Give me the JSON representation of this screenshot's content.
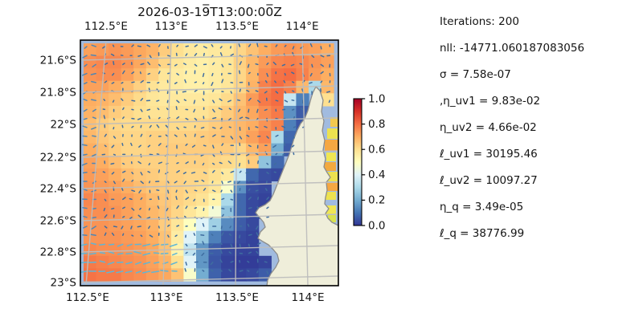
{
  "chart_data": {
    "type": "heatmap",
    "title": "2026-03-19̅T13:00:00̅Z",
    "x_tick_labels": [
      "112.5°E",
      "113°E",
      "113.5°E",
      "114°E"
    ],
    "x_axis_sides": "top and bottom",
    "y_tick_labels": [
      "21.6°S",
      "21.8°S",
      "22°S",
      "22.2°S",
      "22.4°S",
      "22.6°S",
      "22.8°S",
      "23°S"
    ],
    "colorbar": {
      "tick_labels": [
        "1.0",
        "0.8",
        "0.6",
        "0.4",
        "0.2",
        "0.0"
      ],
      "range": [
        0,
        1
      ],
      "colormap": "RdYlBu_r",
      "position": "right"
    },
    "annotations": [
      "Iterations: 200",
      "nll: -14771.060187083056",
      "σ = 7.58e-07",
      ",η_uv1 = 9.83e-02",
      "η_uv2 = 4.66e-02",
      "ℓ_uv1 = 30195.46",
      "ℓ_uv2 = 10097.27",
      "η_q = 3.49e-05",
      "ℓ_q = 38776.99"
    ],
    "grid_values": [
      [
        0.72,
        0.73,
        0.74,
        0.73,
        0.71,
        0.69,
        0.64,
        0.6,
        0.57,
        0.56,
        0.57,
        0.58,
        0.62,
        0.66,
        0.7,
        0.73,
        0.74,
        0.73,
        0.72,
        0.7
      ],
      [
        0.75,
        0.76,
        0.76,
        0.74,
        0.71,
        0.67,
        0.62,
        0.58,
        0.56,
        0.55,
        0.56,
        0.58,
        0.63,
        0.68,
        0.73,
        0.76,
        0.77,
        0.76,
        0.74,
        0.72
      ],
      [
        0.74,
        0.75,
        0.75,
        0.72,
        0.68,
        0.63,
        0.58,
        0.56,
        0.55,
        0.55,
        0.56,
        0.58,
        0.62,
        0.68,
        0.75,
        0.79,
        0.8,
        0.77,
        0.73,
        0.7
      ],
      [
        0.72,
        0.72,
        0.7,
        0.67,
        0.63,
        0.59,
        0.57,
        0.56,
        0.55,
        0.55,
        0.56,
        0.58,
        0.62,
        0.69,
        0.77,
        0.8,
        0.77,
        0.68,
        0.3,
        0.68
      ],
      [
        0.7,
        0.69,
        0.67,
        0.64,
        0.61,
        0.58,
        0.57,
        0.57,
        0.57,
        0.57,
        0.58,
        0.61,
        0.66,
        0.73,
        0.78,
        0.8,
        0.35,
        0.12,
        null,
        0.6
      ],
      [
        0.69,
        0.67,
        0.64,
        0.62,
        0.6,
        0.59,
        0.59,
        0.59,
        0.59,
        0.59,
        0.61,
        0.64,
        0.68,
        0.71,
        0.75,
        0.78,
        0.15,
        0.06,
        null,
        null
      ],
      [
        0.67,
        0.64,
        0.62,
        0.61,
        0.61,
        0.61,
        0.61,
        0.61,
        0.61,
        0.62,
        0.64,
        0.66,
        0.68,
        0.7,
        0.74,
        0.77,
        0.12,
        0.05,
        null,
        null
      ],
      [
        0.68,
        0.65,
        0.63,
        0.62,
        0.62,
        0.63,
        0.63,
        0.63,
        0.63,
        0.64,
        0.65,
        0.66,
        0.68,
        0.72,
        0.76,
        0.3,
        0.08,
        null,
        null,
        null
      ],
      [
        0.7,
        0.67,
        0.64,
        0.62,
        0.62,
        0.63,
        0.64,
        0.64,
        0.64,
        0.64,
        0.64,
        0.64,
        0.62,
        0.68,
        0.72,
        0.2,
        0.06,
        null,
        null,
        null
      ],
      [
        0.72,
        0.7,
        0.67,
        0.64,
        0.63,
        0.63,
        0.63,
        0.63,
        0.63,
        0.63,
        0.62,
        0.61,
        0.6,
        0.64,
        0.25,
        0.08,
        null,
        null,
        null,
        null
      ],
      [
        0.73,
        0.72,
        0.7,
        0.67,
        0.65,
        0.64,
        0.63,
        0.63,
        0.62,
        0.62,
        0.6,
        0.57,
        0.35,
        0.08,
        0.04,
        0.03,
        null,
        null,
        null,
        null
      ],
      [
        0.74,
        0.73,
        0.72,
        0.7,
        0.67,
        0.65,
        0.64,
        0.63,
        0.62,
        0.61,
        0.58,
        0.48,
        0.15,
        0.04,
        0.03,
        null,
        null,
        null,
        null,
        null
      ],
      [
        0.76,
        0.75,
        0.73,
        0.72,
        0.7,
        0.67,
        0.65,
        0.63,
        0.61,
        0.59,
        0.54,
        0.3,
        0.08,
        0.03,
        0.02,
        null,
        null,
        null,
        null,
        null
      ],
      [
        0.75,
        0.75,
        0.74,
        0.72,
        0.7,
        0.68,
        0.66,
        0.62,
        0.58,
        0.54,
        0.46,
        0.25,
        0.08,
        0.03,
        0.02,
        null,
        null,
        null,
        null,
        null
      ],
      [
        0.74,
        0.74,
        0.73,
        0.72,
        0.71,
        0.69,
        0.64,
        0.58,
        0.5,
        0.4,
        0.28,
        0.14,
        0.06,
        0.03,
        null,
        null,
        null,
        null,
        null,
        null
      ],
      [
        0.74,
        0.74,
        0.74,
        0.73,
        0.72,
        0.7,
        0.66,
        0.56,
        0.4,
        0.26,
        0.12,
        0.05,
        0.03,
        0.02,
        null,
        null,
        null,
        null,
        null,
        null
      ],
      [
        0.76,
        0.75,
        0.75,
        0.74,
        0.73,
        0.71,
        0.66,
        0.54,
        0.34,
        0.16,
        0.06,
        0.03,
        0.02,
        0.02,
        null,
        null,
        null,
        null,
        null,
        null
      ],
      [
        0.78,
        0.77,
        0.76,
        0.75,
        0.74,
        0.72,
        0.69,
        0.6,
        0.4,
        0.16,
        0.05,
        0.02,
        0.01,
        0.01,
        0.02,
        null,
        null,
        null,
        null,
        null
      ],
      [
        0.79,
        0.78,
        0.78,
        0.76,
        0.75,
        0.73,
        0.71,
        0.66,
        0.48,
        0.2,
        0.07,
        0.03,
        0.02,
        0.03,
        0.06,
        null,
        null,
        null,
        null,
        null
      ]
    ],
    "grid_note": "estimated field values 0-1 on a 19x20 grid; null = land/no data",
    "map_features": {
      "land_color": "#efeeda",
      "ocean_color": "#a1bbdf",
      "coastline_color": "#8d8d8b",
      "gridline_color": "#bdbdbd"
    },
    "quiver": {
      "present": true,
      "color": "#3f6da0",
      "strong_color": "#5fb6d6"
    }
  }
}
